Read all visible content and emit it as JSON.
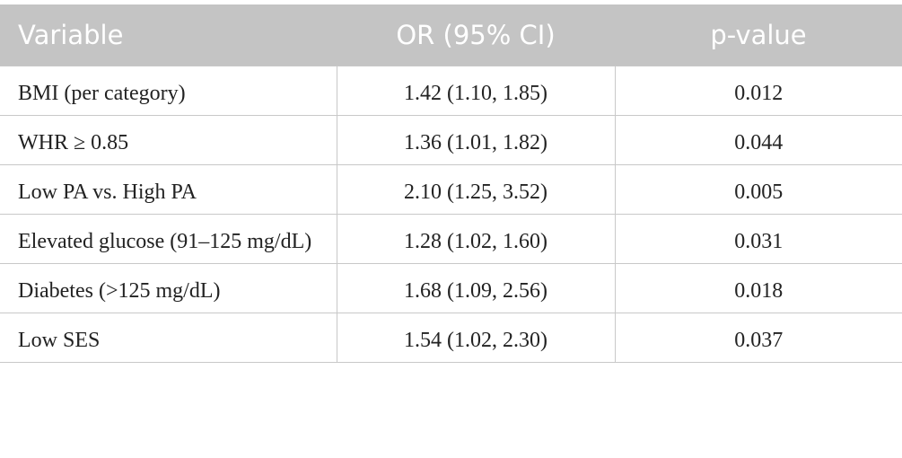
{
  "table": {
    "header": [
      "Variable",
      "OR (95% CI)",
      "p-value"
    ],
    "rows": [
      [
        "BMI (per category)",
        "1.42 (1.10, 1.85)",
        "0.012"
      ],
      [
        "WHR ≥ 0.85",
        "1.36 (1.01, 1.82)",
        "0.044"
      ],
      [
        "Low PA vs. High PA",
        "2.10 (1.25, 3.52)",
        "0.005"
      ],
      [
        "Elevated glucose (91–125 mg/dL)",
        "1.28 (1.02, 1.60)",
        "0.031"
      ],
      [
        "Diabetes (>125 mg/dL)",
        "1.68 (1.09, 2.56)",
        "0.018"
      ],
      [
        "Low SES",
        "1.54 (1.02, 2.30)",
        "0.037"
      ]
    ]
  }
}
